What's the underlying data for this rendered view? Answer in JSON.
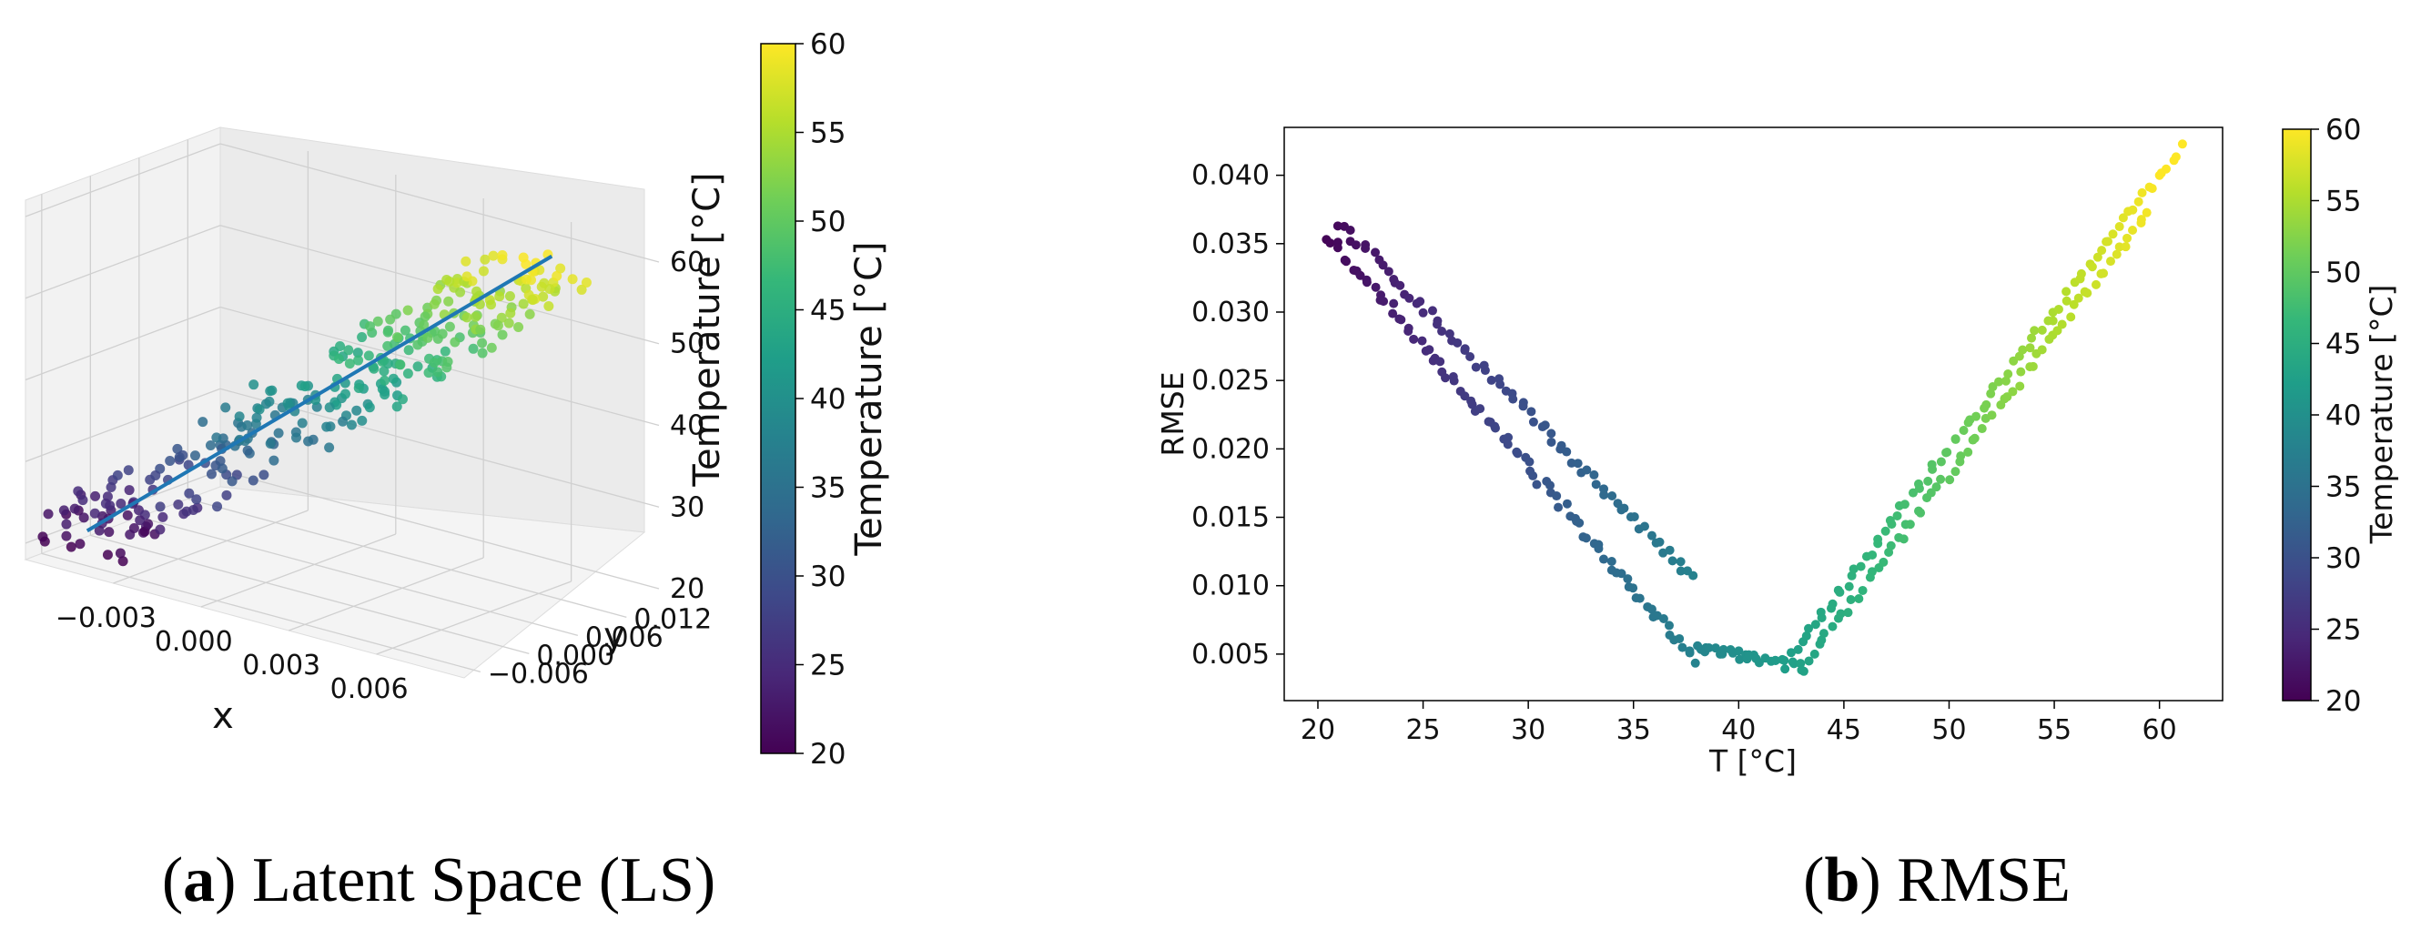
{
  "captions": {
    "a": {
      "letter": "a",
      "text": "Latent Space (LS)"
    },
    "b": {
      "letter": "b",
      "text": "RMSE"
    }
  },
  "colormap": {
    "name": "viridis",
    "range": [
      20,
      60
    ],
    "stops": [
      "#440154",
      "#482878",
      "#3e4989",
      "#31688e",
      "#26828e",
      "#1f9e89",
      "#35b779",
      "#6ece58",
      "#b5de2b",
      "#fde725"
    ]
  },
  "chart_data": [
    {
      "type": "scatter",
      "subtype": "3d-scatter-with-fit-line",
      "title": "",
      "xlabel": "x",
      "ylabel": "y",
      "zlabel": "Temperature [°C]",
      "x_ticks": [
        "−0.003",
        "0.000",
        "0.003",
        "0.006"
      ],
      "y_ticks": [
        "−0.006",
        "0.000",
        "0.006",
        "0.012"
      ],
      "z_ticks": [
        "20",
        "30",
        "40",
        "50",
        "60"
      ],
      "xlim": [
        -0.006,
        0.009
      ],
      "ylim": [
        -0.008,
        0.016
      ],
      "zlim": [
        18,
        62
      ],
      "points": {
        "count": 320,
        "t_range": [
          20,
          60
        ],
        "x_range": [
          -0.005,
          0.007
        ],
        "y_range": [
          -0.004,
          0.01
        ],
        "note_color_by": "temperature"
      },
      "fit_line": {
        "color": "#1f77b4",
        "start": {
          "x": -0.005,
          "y": -0.004,
          "z": 21
        },
        "end": {
          "x": 0.007,
          "y": 0.01,
          "z": 61
        }
      },
      "colorbar": {
        "label": "Temperature [°C]",
        "min": 20,
        "max": 60,
        "ticks": [
          "20",
          "25",
          "30",
          "35",
          "40",
          "45",
          "50",
          "55",
          "60"
        ]
      },
      "grid": true
    },
    {
      "type": "scatter",
      "title": "",
      "xlabel": "T [°C]",
      "ylabel": "RMSE",
      "xlim": [
        18.4,
        63.0
      ],
      "ylim": [
        0.0016,
        0.0435
      ],
      "x_ticks": [
        "20",
        "25",
        "30",
        "35",
        "40",
        "45",
        "50",
        "55",
        "60"
      ],
      "y_ticks": [
        "0.005",
        "0.010",
        "0.015",
        "0.020",
        "0.025",
        "0.030",
        "0.035",
        "0.040"
      ],
      "x_tick_values": [
        20,
        25,
        30,
        35,
        40,
        45,
        50,
        55,
        60
      ],
      "y_tick_values": [
        0.005,
        0.01,
        0.015,
        0.02,
        0.025,
        0.03,
        0.035,
        0.04
      ],
      "series": [
        {
          "color_by": "temperature",
          "x_range": [
            20.5,
            38.0
          ],
          "y_start": 0.0355,
          "y_end": 0.0045,
          "count": 90
        },
        {
          "color_by": "temperature",
          "x_range": [
            21.0,
            37.8
          ],
          "y_start": 0.0365,
          "y_end": 0.0105,
          "count": 75
        },
        {
          "color_by": "temperature",
          "x_range": [
            38.0,
            43.0
          ],
          "y_start": 0.0055,
          "y_end": 0.004,
          "count": 30
        },
        {
          "color_by": "temperature",
          "x_range": [
            42.5,
            61.0
          ],
          "y_start": 0.005,
          "y_end": 0.042,
          "count": 85
        },
        {
          "color_by": "temperature",
          "x_range": [
            43.0,
            59.5
          ],
          "y_start": 0.004,
          "y_end": 0.0375,
          "count": 70
        }
      ],
      "colorbar": {
        "label": "Temperature [°C]",
        "min": 20,
        "max": 60,
        "ticks": [
          "20",
          "25",
          "30",
          "35",
          "40",
          "45",
          "50",
          "55",
          "60"
        ]
      },
      "grid": false
    }
  ]
}
